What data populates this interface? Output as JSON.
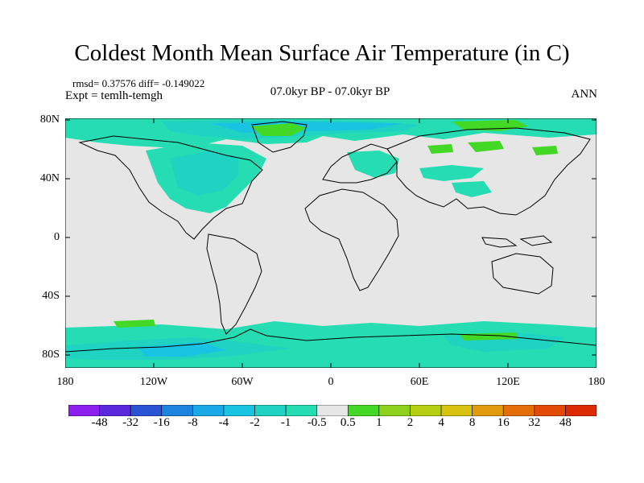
{
  "title": "Coldest Month Mean Surface Air Temperature (in C)",
  "stats": {
    "text": "rmsd= 0.37576 diff= -0.149022",
    "rmsd": 0.37576,
    "diff": -0.149022
  },
  "experiment": "Expt = temlh-temgh",
  "period": "07.0kyr BP - 07.0kyr BP",
  "season": "ANN",
  "latitude_labels": [
    "80N",
    "40N",
    "0",
    "40S",
    "80S"
  ],
  "longitude_labels": [
    "180",
    "120W",
    "60W",
    "0",
    "60E",
    "120E",
    "180"
  ],
  "colorbar": {
    "labels": [
      "-48",
      "-32",
      "-16",
      "-8",
      "-4",
      "-2",
      "-1",
      "-0.5",
      "0.5",
      "1",
      "2",
      "4",
      "8",
      "16",
      "32",
      "48"
    ],
    "colors": [
      "#8c1eee",
      "#5b27db",
      "#2a54d4",
      "#1c83de",
      "#1aa8e6",
      "#18c4e2",
      "#1ed3c2",
      "#26dcb2",
      "#e6e6e6",
      "#44d826",
      "#8ed11c",
      "#b6cf12",
      "#d8c210",
      "#e09a0c",
      "#e46e08",
      "#e24a06",
      "#dc2a04"
    ]
  },
  "chart_data": {
    "type": "heatmap",
    "variable": "Coldest Month Mean Surface Air Temperature (in C)",
    "x_extent": [
      -180,
      180
    ],
    "y_extent": [
      -90,
      90
    ],
    "colors": {
      "land_outline": "#000000",
      "background_no_change": "#e6e6e6",
      "cool_-0.5_to_-1": "#26dcb2",
      "cool_-1_to_-2": "#1ed3c2",
      "cool_-2_to_-4": "#18c4e2",
      "warm_0.5_to_1": "#44d826"
    }
  }
}
